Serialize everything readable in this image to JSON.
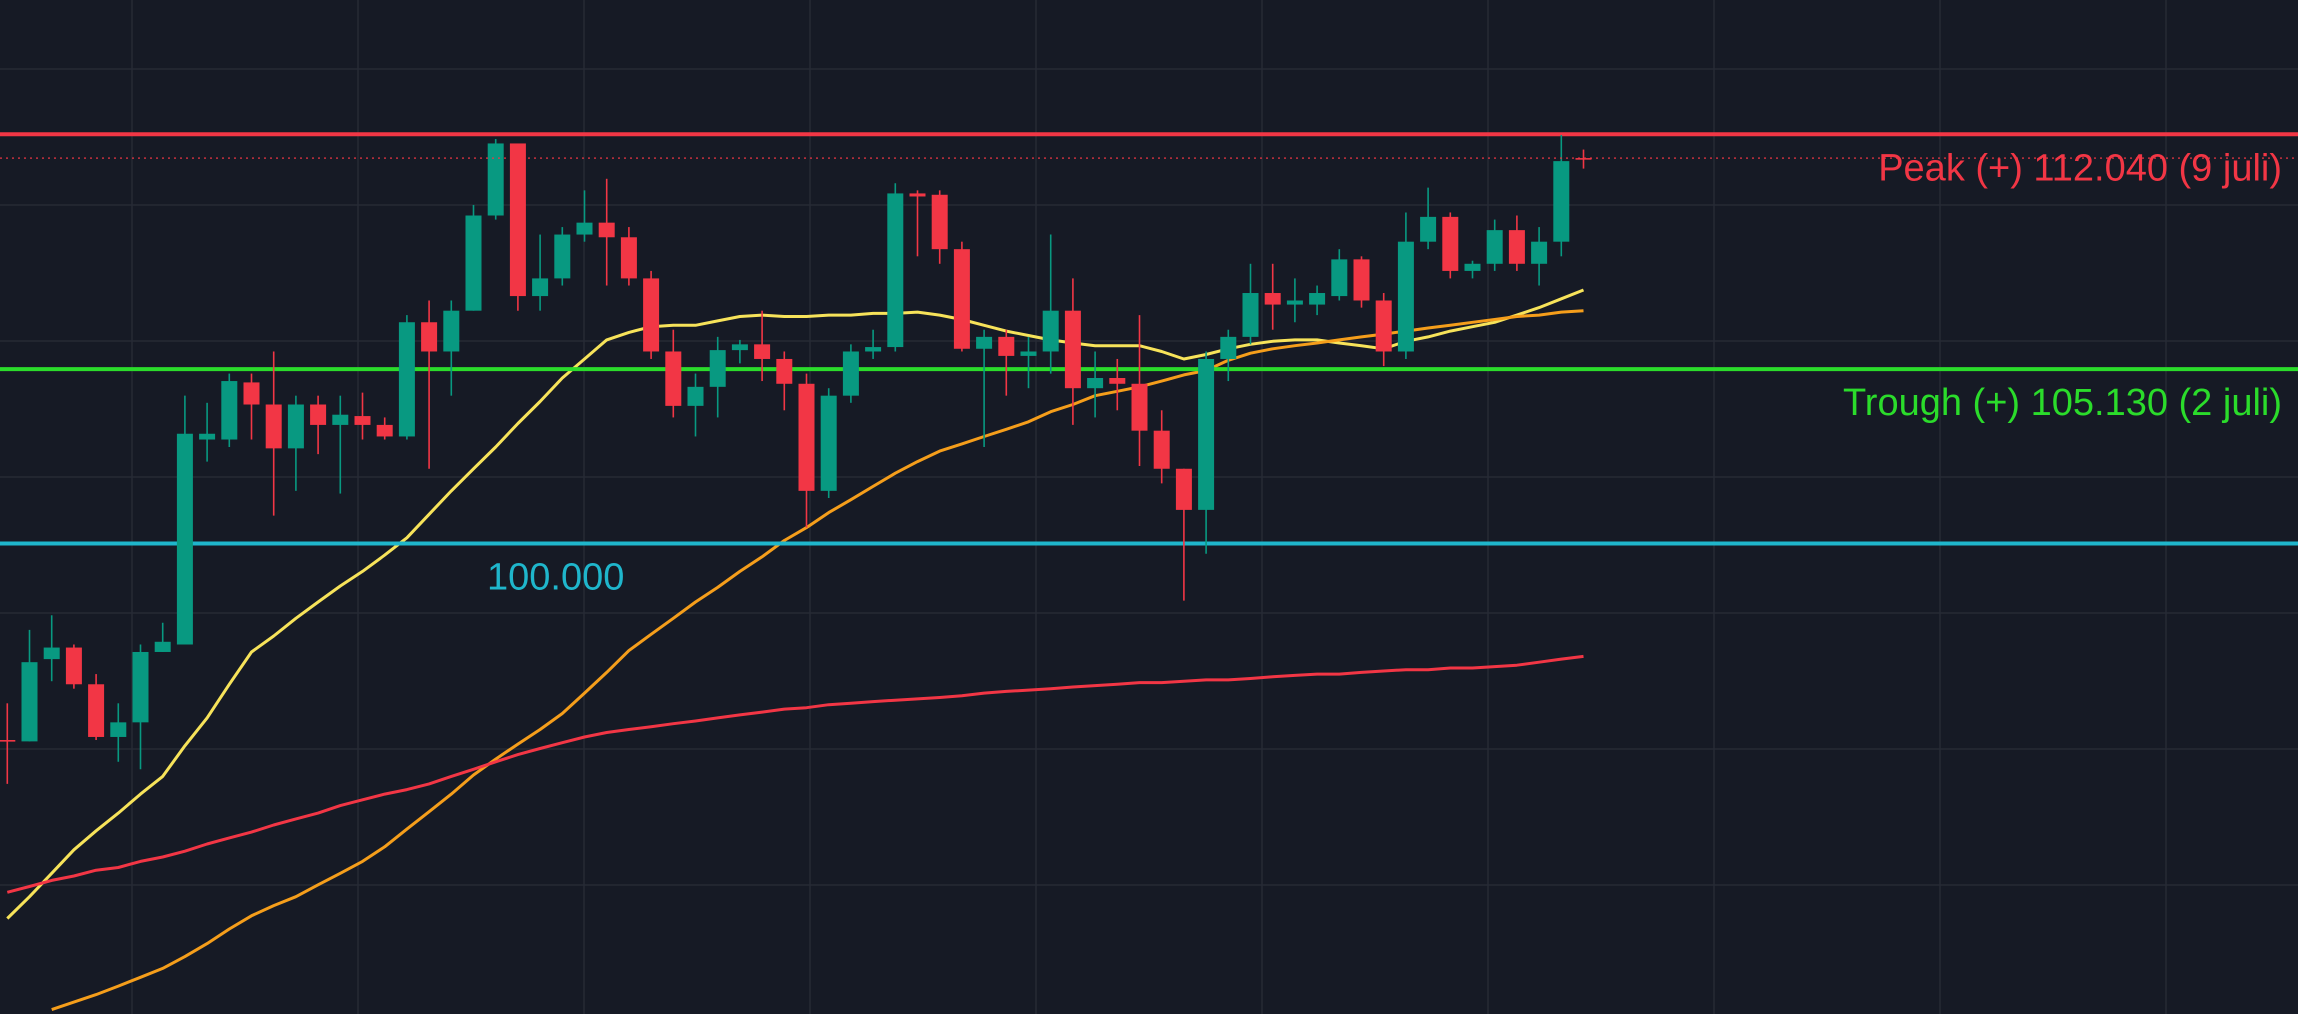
{
  "chart_data": {
    "type": "candlestick",
    "categories": [
      null,
      null,
      null,
      null,
      null,
      null,
      null,
      null,
      null,
      null,
      null,
      null,
      null,
      null,
      null,
      null,
      null,
      null,
      null,
      null,
      null,
      null,
      null,
      null,
      null,
      null,
      null,
      null,
      null,
      null,
      null,
      null,
      null,
      null,
      null,
      null,
      null,
      null,
      null,
      null,
      null,
      null,
      null,
      null,
      null,
      null,
      null,
      null,
      null,
      null,
      null,
      null,
      null,
      null,
      null,
      null,
      null,
      null,
      null,
      null,
      null,
      null,
      null,
      null,
      null,
      null,
      null,
      null,
      null,
      null,
      null,
      null
    ],
    "open": [
      94.22,
      94.18,
      96.6,
      96.94,
      95.86,
      94.31,
      94.74,
      96.81,
      97.03,
      103.06,
      103.06,
      104.74,
      104.09,
      102.8,
      104.09,
      103.49,
      103.75,
      103.49,
      103.15,
      106.51,
      105.65,
      106.85,
      109.65,
      111.77,
      107.28,
      107.8,
      109.09,
      109.44,
      109.01,
      107.8,
      105.65,
      104.05,
      104.61,
      105.69,
      105.86,
      105.43,
      104.7,
      101.55,
      104.35,
      105.65,
      105.78,
      110.3,
      110.26,
      108.66,
      105.73,
      106.08,
      105.52,
      105.65,
      106.85,
      104.57,
      104.87,
      104.7,
      103.32,
      102.2,
      100.99,
      105.43,
      106.08,
      107.37,
      107.03,
      107.03,
      107.28,
      108.36,
      107.15,
      105.65,
      108.88,
      109.61,
      108.02,
      108.23,
      109.22,
      108.23,
      108.88,
      111.34
    ],
    "high": [
      95.3,
      97.46,
      97.89,
      97.03,
      96.16,
      95.3,
      97.03,
      97.67,
      104.35,
      104.14,
      105.0,
      105.0,
      105.65,
      104.35,
      104.35,
      104.35,
      104.44,
      103.71,
      106.72,
      107.15,
      107.15,
      109.96,
      111.9,
      111.77,
      109.09,
      109.31,
      110.39,
      110.73,
      109.31,
      108.02,
      106.29,
      105.0,
      106.08,
      105.99,
      106.85,
      105.65,
      105.0,
      104.57,
      105.86,
      106.29,
      110.6,
      110.39,
      110.39,
      108.88,
      106.29,
      106.29,
      106.08,
      109.09,
      107.8,
      105.65,
      105.43,
      106.72,
      103.92,
      102.2,
      105.65,
      106.29,
      108.23,
      108.23,
      107.8,
      107.59,
      108.66,
      108.45,
      107.37,
      109.74,
      110.47,
      109.74,
      108.32,
      109.53,
      109.65,
      109.31,
      112.02,
      111.59
    ],
    "low": [
      92.93,
      94.18,
      95.95,
      95.73,
      94.22,
      93.58,
      93.36,
      96.81,
      97.03,
      102.41,
      102.84,
      103.06,
      100.82,
      101.55,
      102.63,
      101.47,
      103.06,
      103.06,
      103.06,
      102.2,
      104.35,
      106.85,
      109.53,
      106.85,
      106.85,
      107.59,
      108.88,
      107.59,
      107.59,
      105.43,
      103.71,
      103.15,
      103.71,
      105.3,
      104.78,
      103.92,
      100.47,
      101.34,
      104.14,
      105.43,
      105.65,
      108.45,
      108.23,
      105.65,
      102.84,
      104.35,
      104.57,
      105.0,
      103.49,
      103.71,
      103.92,
      102.28,
      101.77,
      98.32,
      99.7,
      104.78,
      105.86,
      106.29,
      106.51,
      106.72,
      107.15,
      106.94,
      105.22,
      105.43,
      108.66,
      107.8,
      107.8,
      108.02,
      108.02,
      107.59,
      108.45,
      111.03
    ],
    "close": [
      94.18,
      96.51,
      96.94,
      95.86,
      94.31,
      94.74,
      96.81,
      97.11,
      103.23,
      103.23,
      104.78,
      104.09,
      102.8,
      104.09,
      103.49,
      103.79,
      103.49,
      103.15,
      106.51,
      105.65,
      106.85,
      109.65,
      111.77,
      107.28,
      107.8,
      109.09,
      109.44,
      109.01,
      107.8,
      105.65,
      104.05,
      104.61,
      105.69,
      105.86,
      105.43,
      104.7,
      101.55,
      104.35,
      105.65,
      105.78,
      110.3,
      110.21,
      108.66,
      105.73,
      106.08,
      105.52,
      105.65,
      106.85,
      104.57,
      104.87,
      104.7,
      103.32,
      102.2,
      100.99,
      105.43,
      106.08,
      107.37,
      107.03,
      107.15,
      107.37,
      108.36,
      107.15,
      105.65,
      108.88,
      109.61,
      108.02,
      108.23,
      109.22,
      108.23,
      108.88,
      111.25,
      111.34
    ],
    "up_color": "#089981",
    "down_color": "#f23645",
    "ylim": [
      86.16,
      115.99
    ],
    "grid": true,
    "overlays": [
      {
        "color": "#f7e35a",
        "values": [
          88.97,
          89.61,
          90.3,
          90.99,
          91.55,
          92.07,
          92.63,
          93.15,
          94.05,
          94.87,
          95.86,
          96.81,
          97.28,
          97.8,
          98.28,
          98.75,
          99.18,
          99.66,
          100.17,
          100.86,
          101.55,
          102.2,
          102.84,
          103.53,
          104.18,
          104.87,
          105.43,
          105.99,
          106.21,
          106.38,
          106.42,
          106.42,
          106.55,
          106.68,
          106.72,
          106.68,
          106.68,
          106.72,
          106.72,
          106.77,
          106.77,
          106.81,
          106.72,
          106.59,
          106.42,
          106.25,
          106.12,
          105.99,
          105.9,
          105.82,
          105.82,
          105.82,
          105.65,
          105.43,
          105.56,
          105.73,
          105.86,
          105.95,
          105.99,
          105.99,
          105.9,
          105.82,
          105.73,
          105.95,
          106.08,
          106.25,
          106.38,
          106.51,
          106.72,
          106.94,
          107.2,
          107.46
        ]
      },
      {
        "color": "#f59e1b",
        "values": [
          null,
          null,
          86.29,
          86.51,
          86.73,
          86.98,
          87.24,
          87.5,
          87.85,
          88.23,
          88.66,
          89.05,
          89.35,
          89.61,
          89.96,
          90.3,
          90.65,
          91.08,
          91.6,
          92.11,
          92.63,
          93.19,
          93.66,
          94.1,
          94.53,
          95.0,
          95.6,
          96.21,
          96.85,
          97.33,
          97.8,
          98.28,
          98.71,
          99.18,
          99.61,
          100.09,
          100.47,
          100.91,
          101.29,
          101.68,
          102.07,
          102.41,
          102.72,
          102.93,
          103.15,
          103.36,
          103.58,
          103.88,
          104.09,
          104.35,
          104.48,
          104.61,
          104.78,
          104.96,
          105.09,
          105.39,
          105.6,
          105.73,
          105.82,
          105.9,
          105.99,
          106.08,
          106.16,
          106.25,
          106.34,
          106.42,
          106.51,
          106.59,
          106.68,
          106.72,
          106.81,
          106.85
        ]
      },
      {
        "color": "#f23645",
        "values": [
          89.74,
          89.91,
          90.09,
          90.22,
          90.39,
          90.47,
          90.65,
          90.78,
          90.95,
          91.16,
          91.34,
          91.51,
          91.72,
          91.9,
          92.07,
          92.29,
          92.46,
          92.63,
          92.76,
          92.93,
          93.15,
          93.36,
          93.58,
          93.79,
          93.97,
          94.14,
          94.31,
          94.44,
          94.53,
          94.61,
          94.7,
          94.78,
          94.87,
          94.96,
          95.04,
          95.13,
          95.17,
          95.26,
          95.3,
          95.35,
          95.39,
          95.43,
          95.47,
          95.52,
          95.6,
          95.65,
          95.69,
          95.73,
          95.78,
          95.82,
          95.86,
          95.91,
          95.91,
          95.95,
          95.99,
          95.99,
          96.03,
          96.08,
          96.12,
          96.16,
          96.16,
          96.21,
          96.25,
          96.29,
          96.29,
          96.34,
          96.34,
          96.38,
          96.42,
          96.51,
          96.6,
          96.68
        ]
      }
    ],
    "levels": [
      {
        "label": "Peak (+) 112.040 (9 juli)",
        "value": 112.04,
        "color": "#f23645"
      },
      {
        "label": "Trough (+) 105.130 (2 juli)",
        "value": 105.13,
        "color": "#2bdc2b"
      },
      {
        "label": "100.000",
        "value": 100,
        "color": "#1fb6cc"
      }
    ]
  }
}
